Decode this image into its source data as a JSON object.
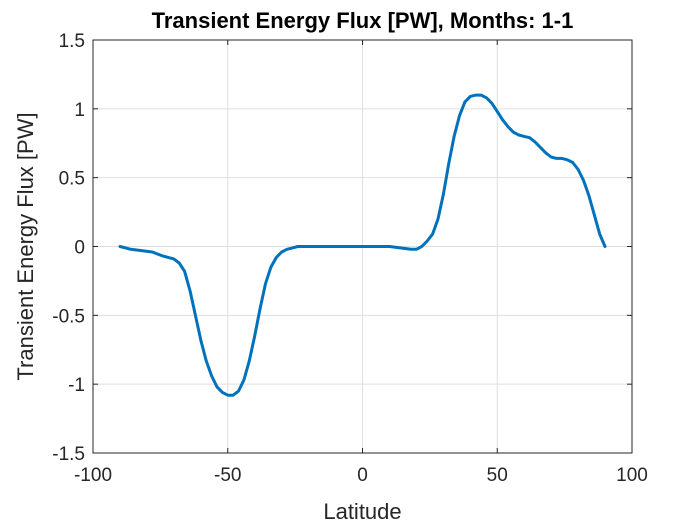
{
  "chart_data": {
    "type": "line",
    "title": "Transient Energy Flux [PW], Months: 1-1",
    "xlabel": "Latitude",
    "ylabel": "Transient Energy Flux [PW]",
    "xlim": [
      -100,
      100
    ],
    "ylim": [
      -1.5,
      1.5
    ],
    "xticks": [
      -100,
      -50,
      0,
      50,
      100
    ],
    "xtick_labels": [
      "-100",
      "-50",
      "0",
      "50",
      "100"
    ],
    "yticks": [
      -1.5,
      -1,
      -0.5,
      0,
      0.5,
      1,
      1.5
    ],
    "ytick_labels": [
      "-1.5",
      "-1",
      "-0.5",
      "0",
      "0.5",
      "1",
      "1.5"
    ],
    "grid": true,
    "series": [
      {
        "color": "#0072bd",
        "x": [
          -90,
          -86,
          -82,
          -78,
          -74,
          -70,
          -68,
          -66,
          -64,
          -62,
          -60,
          -58,
          -56,
          -54,
          -52,
          -50,
          -48,
          -46,
          -44,
          -42,
          -40,
          -38,
          -36,
          -34,
          -32,
          -30,
          -28,
          -26,
          -24,
          -22,
          -20,
          -16,
          -10,
          -5,
          0,
          5,
          10,
          14,
          18,
          20,
          22,
          24,
          26,
          28,
          30,
          32,
          34,
          36,
          38,
          40,
          42,
          44,
          46,
          48,
          50,
          52,
          54,
          56,
          58,
          60,
          62,
          64,
          66,
          68,
          70,
          72,
          74,
          76,
          78,
          80,
          82,
          84,
          86,
          88,
          90
        ],
        "y": [
          0.0,
          -0.02,
          -0.03,
          -0.04,
          -0.07,
          -0.09,
          -0.12,
          -0.18,
          -0.32,
          -0.5,
          -0.68,
          -0.83,
          -0.94,
          -1.02,
          -1.06,
          -1.08,
          -1.08,
          -1.05,
          -0.97,
          -0.83,
          -0.65,
          -0.45,
          -0.27,
          -0.15,
          -0.08,
          -0.04,
          -0.02,
          -0.01,
          0.0,
          0.0,
          0.0,
          0.0,
          0.0,
          0.0,
          0.0,
          0.0,
          0.0,
          -0.01,
          -0.02,
          -0.02,
          0.0,
          0.04,
          0.09,
          0.2,
          0.38,
          0.6,
          0.8,
          0.95,
          1.05,
          1.09,
          1.1,
          1.1,
          1.08,
          1.04,
          0.98,
          0.92,
          0.87,
          0.83,
          0.81,
          0.8,
          0.79,
          0.76,
          0.72,
          0.68,
          0.65,
          0.64,
          0.64,
          0.63,
          0.61,
          0.56,
          0.48,
          0.37,
          0.23,
          0.09,
          0.0
        ]
      }
    ]
  }
}
